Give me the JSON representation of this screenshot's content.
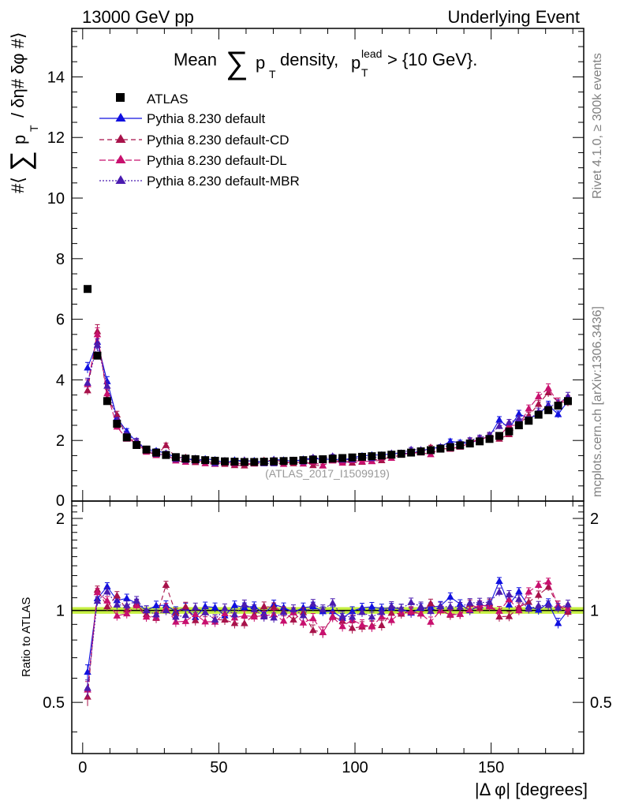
{
  "header": {
    "left": "13000 GeV pp",
    "right": "Underlying Event"
  },
  "side_labels": {
    "rivet": "Rivet 4.1.0, ≥ 300k events",
    "mcplots": "mcplots.cern.ch [arXiv:1306.3436]"
  },
  "chart_data": [
    {
      "type": "scatter",
      "panel": "main",
      "title": "Mean ∑ pT density, pT lead > {10 GeV}.",
      "title_parts": {
        "mean": "Mean",
        "sum": "∑",
        "p": "p",
        "sub_t": "T",
        "density": "density,",
        "p2": "p",
        "sup_lead": "lead",
        "sub_t2": "T",
        "cut": "> {10 GeV}."
      },
      "ylabel": "#⟨ ∑ pT / δη# δφ #⟩",
      "ylabel_parts": {
        "open": "#⟨",
        "sum": "∑",
        "p": "p",
        "sub_t": "T",
        "rest": "/ δη# δφ #⟩"
      },
      "xlabel": "",
      "xlim": [
        -4,
        184
      ],
      "ylim": [
        0,
        15.6
      ],
      "yticks": [
        2,
        4,
        6,
        8,
        10,
        12,
        14
      ],
      "ytick_labels": [
        "2",
        "4",
        "6",
        "8",
        "10",
        "12",
        "14"
      ],
      "ytick_partial": "0",
      "watermark": "(ATLAS_2017_I1509919)",
      "legend": [
        "ATLAS",
        "Pythia 8.230 default",
        "Pythia 8.230 default-CD",
        "Pythia 8.230 default-DL",
        "Pythia 8.230 default-MBR"
      ],
      "x": [
        1.8,
        5.4,
        9,
        12.6,
        16.2,
        19.8,
        23.4,
        27,
        30.6,
        34.2,
        37.8,
        41.4,
        45,
        48.6,
        52.2,
        55.8,
        59.4,
        63,
        66.6,
        70.2,
        73.8,
        77.4,
        81,
        84.6,
        88.2,
        91.8,
        95.4,
        99,
        102.6,
        106.2,
        109.8,
        113.4,
        117,
        120.6,
        124.2,
        127.8,
        131.4,
        135,
        138.6,
        142.2,
        145.8,
        149.4,
        153,
        156.6,
        160.2,
        163.8,
        167.4,
        171,
        174.6,
        178.2
      ],
      "series": [
        {
          "name": "ATLAS",
          "color": "#000000",
          "marker": "square",
          "values": [
            7.0,
            4.8,
            3.3,
            2.55,
            2.1,
            1.85,
            1.7,
            1.6,
            1.52,
            1.45,
            1.4,
            1.38,
            1.35,
            1.33,
            1.31,
            1.3,
            1.29,
            1.29,
            1.3,
            1.31,
            1.32,
            1.33,
            1.35,
            1.37,
            1.38,
            1.4,
            1.42,
            1.44,
            1.46,
            1.48,
            1.5,
            1.53,
            1.56,
            1.6,
            1.64,
            1.68,
            1.73,
            1.78,
            1.84,
            1.9,
            1.97,
            2.05,
            2.15,
            2.3,
            2.5,
            2.65,
            2.85,
            3.0,
            3.15,
            3.3
          ]
        },
        {
          "name": "Pythia 8.230 default",
          "color": "#1010e0",
          "marker": "triangle",
          "values": [
            4.4,
            5.25,
            3.95,
            2.75,
            2.3,
            1.95,
            1.7,
            1.66,
            1.58,
            1.44,
            1.43,
            1.31,
            1.39,
            1.36,
            1.26,
            1.35,
            1.32,
            1.33,
            1.27,
            1.37,
            1.35,
            1.31,
            1.38,
            1.41,
            1.37,
            1.39,
            1.34,
            1.43,
            1.49,
            1.52,
            1.52,
            1.56,
            1.58,
            1.57,
            1.67,
            1.72,
            1.79,
            1.97,
            1.93,
            1.9,
            2.04,
            2.13,
            2.68,
            2.4,
            2.88,
            2.73,
            2.86,
            3.17,
            2.86,
            3.3
          ]
        },
        {
          "name": "Pythia 8.230 default-CD",
          "color": "#a8124a",
          "marker": "triangle",
          "values": [
            3.65,
            5.6,
            3.4,
            2.85,
            2.11,
            1.94,
            1.65,
            1.51,
            1.84,
            1.42,
            1.44,
            1.28,
            1.33,
            1.24,
            1.22,
            1.18,
            1.17,
            1.25,
            1.34,
            1.34,
            1.31,
            1.24,
            1.33,
            1.18,
            1.17,
            1.34,
            1.31,
            1.26,
            1.29,
            1.32,
            1.34,
            1.5,
            1.52,
            1.59,
            1.6,
            1.77,
            1.73,
            1.72,
            1.79,
            1.99,
            2.0,
            2.16,
            2.05,
            2.2,
            2.56,
            2.82,
            3.2,
            3.58,
            3.27,
            3.26
          ]
        },
        {
          "name": "Pythia 8.230 default-DL",
          "color": "#c8106e",
          "marker": "triangle",
          "values": [
            3.85,
            5.5,
            3.55,
            2.45,
            2.05,
            1.92,
            1.62,
            1.52,
            1.55,
            1.33,
            1.29,
            1.34,
            1.24,
            1.22,
            1.28,
            1.23,
            1.24,
            1.23,
            1.25,
            1.27,
            1.22,
            1.31,
            1.23,
            1.29,
            1.17,
            1.33,
            1.26,
            1.34,
            1.31,
            1.31,
            1.43,
            1.42,
            1.54,
            1.58,
            1.6,
            1.54,
            1.73,
            1.73,
            1.79,
            1.91,
            2.05,
            2.11,
            2.14,
            2.5,
            2.5,
            3.05,
            3.45,
            3.72,
            3.27,
            3.35
          ]
        },
        {
          "name": "Pythia 8.230 default-MBR",
          "color": "#4a1bb0",
          "marker": "triangle",
          "values": [
            3.9,
            5.15,
            3.8,
            2.66,
            2.18,
            1.99,
            1.7,
            1.55,
            1.52,
            1.38,
            1.35,
            1.41,
            1.33,
            1.24,
            1.33,
            1.26,
            1.35,
            1.3,
            1.24,
            1.24,
            1.3,
            1.34,
            1.3,
            1.44,
            1.39,
            1.48,
            1.36,
            1.37,
            1.44,
            1.41,
            1.48,
            1.58,
            1.58,
            1.7,
            1.69,
            1.67,
            1.78,
            1.83,
            1.89,
            2.01,
            2.09,
            2.18,
            2.47,
            2.59,
            2.72,
            2.68,
            2.95,
            3.12,
            3.21,
            3.45
          ]
        }
      ]
    },
    {
      "type": "scatter",
      "panel": "ratio",
      "ylabel": "Ratio to ATLAS",
      "xlabel": "|Δ φ| [degrees]",
      "xlim": [
        -4,
        184
      ],
      "ylim": [
        0.34,
        2.28
      ],
      "xticks": [
        0,
        50,
        100,
        150
      ],
      "xtick_labels": [
        "0",
        "50",
        "100",
        "150"
      ],
      "yticks": [
        0.5,
        1,
        2
      ],
      "ytick_labels": [
        "0.5",
        "1",
        "2"
      ],
      "band": {
        "center": 1.0,
        "half_width": 0.025,
        "color": "#c6f042"
      }
    }
  ]
}
